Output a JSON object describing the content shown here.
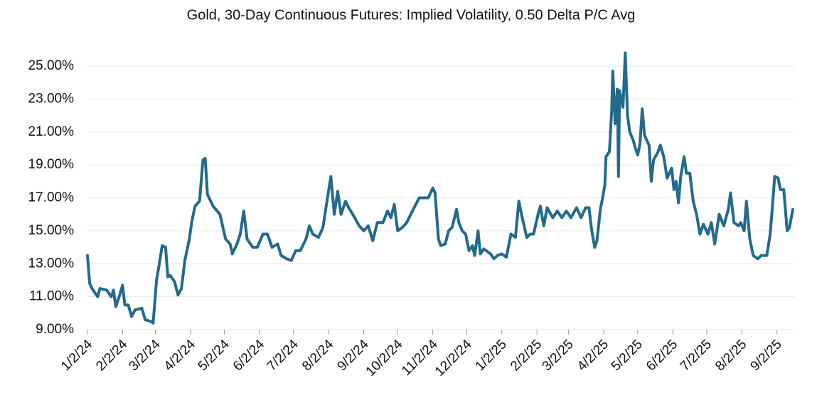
{
  "chart_data": {
    "type": "line",
    "title": "Gold, 30-Day Continuous Futures: Implied Volatility, 0.50 Delta P/C Avg",
    "color": "#236a8c",
    "grid": true,
    "x": [
      "1/2/24",
      "1/4/24",
      "1/6/24",
      "1/11/24",
      "1/13/24",
      "1/19/24",
      "1/23/24",
      "1/25/24",
      "1/27/24",
      "1/30/24",
      "2/2/24",
      "2/4/24",
      "2/7/24",
      "2/10/24",
      "2/13/24",
      "2/19/24",
      "2/22/24",
      "2/27/24",
      "2/29/24",
      "3/3/24",
      "3/5/24",
      "3/8/24",
      "3/11/24",
      "3/13/24",
      "3/15/24",
      "3/19/24",
      "3/22/24",
      "3/25/24",
      "3/28/24",
      "4/1/24",
      "4/3/24",
      "4/6/24",
      "4/10/24",
      "4/13/24",
      "4/15/24",
      "4/17/24",
      "4/22/24",
      "4/28/24",
      "5/3/24",
      "5/7/24",
      "5/9/24",
      "5/13/24",
      "5/16/24",
      "5/19/24",
      "5/22/24",
      "5/27/24",
      "5/31/24",
      "6/5/24",
      "6/9/24",
      "6/13/24",
      "6/18/24",
      "6/21/24",
      "6/26/24",
      "6/30/24",
      "7/4/24",
      "7/8/24",
      "7/13/24",
      "7/16/24",
      "7/19/24",
      "7/24/24",
      "7/28/24",
      "8/1/24",
      "8/4/24",
      "8/7/24",
      "8/10/24",
      "8/13/24",
      "8/17/24",
      "8/19/24",
      "8/25/24",
      "8/29/24",
      "9/2/24",
      "9/6/24",
      "9/10/24",
      "9/14/24",
      "9/19/24",
      "9/23/24",
      "9/26/24",
      "9/29/24",
      "10/2/24",
      "10/6/24",
      "10/10/24",
      "10/15/24",
      "10/21/24",
      "10/26/24",
      "10/29/24",
      "11/2/24",
      "11/4/24",
      "11/7/24",
      "11/9/24",
      "11/13/24",
      "11/16/24",
      "11/19/24",
      "11/23/24",
      "11/25/24",
      "11/28/24",
      "12/1/24",
      "12/4/24",
      "12/7/24",
      "12/9/24",
      "12/12/24",
      "12/14/24",
      "12/17/24",
      "12/23/24",
      "12/26/24",
      "12/29/24",
      "1/2/25",
      "1/6/25",
      "1/10/25",
      "1/14/25",
      "1/17/25",
      "1/20/25",
      "1/24/25",
      "1/27/25",
      "1/30/25",
      "2/3/25",
      "2/5/25",
      "2/8/25",
      "2/11/25",
      "2/16/25",
      "2/20/25",
      "2/24/25",
      "2/28/25",
      "3/4/25",
      "3/9/25",
      "3/13/25",
      "3/17/25",
      "3/20/25",
      "3/22/25",
      "3/25/25",
      "3/27/25",
      "3/30/25",
      "4/1/25",
      "4/3/25",
      "4/4/25",
      "4/7/25",
      "4/9/25",
      "4/10/25",
      "4/12/25",
      "4/14/25",
      "4/15/25",
      "4/16/25",
      "4/19/25",
      "4/21/25",
      "4/23/25",
      "4/25/25",
      "4/28/25",
      "4/30/25",
      "5/2/25",
      "5/4/25",
      "5/6/25",
      "5/8/25",
      "5/12/25",
      "5/14/25",
      "5/16/25",
      "5/20/25",
      "5/22/25",
      "5/25/25",
      "5/28/25",
      "6/1/25",
      "6/3/25",
      "6/5/25",
      "6/7/25",
      "6/9/25",
      "6/12/25",
      "6/14/25",
      "6/17/25",
      "6/20/25",
      "6/23/25",
      "6/26/25",
      "6/29/25",
      "7/3/25",
      "7/6/25",
      "7/9/25",
      "7/13/25",
      "7/17/25",
      "7/21/25",
      "7/23/25",
      "7/26/25",
      "7/30/25",
      "8/1/25",
      "8/4/25",
      "8/6/25",
      "8/9/25",
      "8/12/25",
      "8/16/25",
      "8/19/25",
      "8/24/25",
      "8/27/25",
      "8/29/25",
      "8/31/25",
      "9/3/25",
      "9/5/25",
      "9/8/25",
      "9/11/25",
      "9/13/25",
      "9/16/25"
    ],
    "values": [
      13.5,
      11.8,
      11.5,
      11.0,
      11.5,
      11.4,
      11.0,
      11.4,
      10.4,
      11.0,
      11.7,
      10.5,
      10.5,
      9.8,
      10.2,
      10.3,
      9.6,
      9.5,
      9.4,
      12.0,
      12.8,
      14.1,
      14.0,
      12.2,
      12.3,
      11.9,
      11.1,
      11.5,
      13.2,
      14.5,
      15.5,
      16.5,
      16.8,
      19.3,
      19.4,
      17.2,
      16.5,
      16.0,
      14.5,
      14.2,
      13.6,
      14.2,
      14.8,
      16.2,
      14.5,
      14.0,
      14.0,
      14.8,
      14.8,
      14.0,
      14.2,
      13.5,
      13.3,
      13.2,
      13.8,
      13.8,
      14.5,
      15.3,
      14.8,
      14.6,
      15.2,
      17.0,
      18.3,
      16.0,
      17.4,
      16.0,
      16.8,
      16.5,
      15.8,
      15.3,
      15.0,
      15.3,
      14.4,
      15.5,
      15.5,
      16.2,
      15.8,
      16.6,
      15.0,
      15.2,
      15.5,
      16.2,
      17.0,
      17.0,
      17.0,
      17.6,
      17.3,
      14.5,
      14.1,
      14.2,
      15.0,
      15.2,
      16.3,
      15.5,
      15.0,
      14.8,
      13.8,
      14.1,
      13.5,
      15.0,
      13.6,
      13.9,
      13.6,
      13.3,
      13.5,
      13.6,
      13.4,
      14.8,
      14.6,
      16.8,
      15.8,
      14.6,
      14.8,
      14.8,
      16.0,
      16.5,
      15.3,
      16.4,
      15.8,
      16.2,
      15.8,
      16.2,
      15.8,
      16.4,
      15.8,
      16.4,
      16.4,
      15.2,
      14.0,
      14.4,
      16.3,
      17.0,
      17.8,
      19.5,
      19.8,
      22.3,
      24.7,
      21.5,
      23.6,
      18.3,
      23.5,
      22.5,
      25.8,
      22.0,
      21.0,
      20.5,
      20.0,
      19.6,
      20.3,
      22.4,
      20.8,
      20.2,
      18.0,
      19.3,
      19.8,
      20.2,
      19.5,
      18.2,
      18.8,
      17.5,
      18.0,
      16.7,
      18.3,
      19.5,
      18.5,
      18.5,
      16.8,
      16.0,
      14.8,
      15.4,
      14.8,
      15.5,
      14.2,
      16.0,
      15.3,
      16.3,
      17.3,
      15.5,
      15.3,
      15.5,
      15.0,
      16.8,
      14.5,
      13.5,
      13.3,
      13.5,
      13.5,
      14.8,
      16.5,
      18.3,
      18.2,
      17.5,
      17.5,
      15.0,
      15.2,
      16.3
    ],
    "xlim": [
      "1/2/24",
      "9/16/25"
    ],
    "xticks": [
      "1/2/24",
      "2/2/24",
      "3/2/24",
      "4/2/24",
      "5/2/24",
      "6/2/24",
      "7/2/24",
      "8/2/24",
      "9/2/24",
      "10/2/24",
      "11/2/24",
      "12/2/24",
      "1/2/25",
      "2/2/25",
      "3/2/25",
      "4/2/25",
      "5/2/25",
      "6/2/25",
      "7/2/25",
      "8/2/25",
      "9/2/25"
    ],
    "ylim": [
      9,
      26
    ],
    "yticks": [
      {
        "value": 9,
        "label": "9.00%"
      },
      {
        "value": 11,
        "label": "11.00%"
      },
      {
        "value": 13,
        "label": "13.00%"
      },
      {
        "value": 15,
        "label": "15.00%"
      },
      {
        "value": 17,
        "label": "17.00%"
      },
      {
        "value": 19,
        "label": "19.00%"
      },
      {
        "value": 21,
        "label": "21.00%"
      },
      {
        "value": 23,
        "label": "23.00%"
      },
      {
        "value": 25,
        "label": "25.00%"
      }
    ]
  }
}
